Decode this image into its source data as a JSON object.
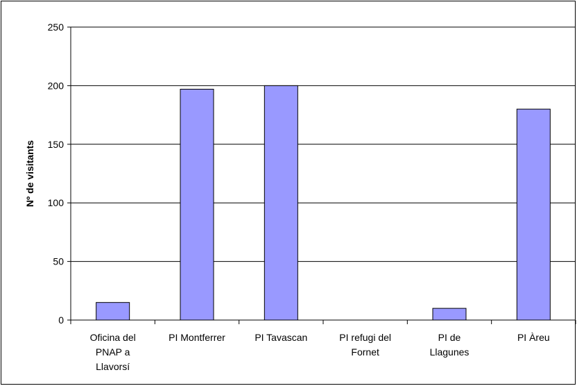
{
  "chart_data": {
    "type": "bar",
    "title": "",
    "xlabel": "",
    "ylabel": "Nº de visitants",
    "ylim": [
      0,
      250
    ],
    "yticks": [
      0,
      50,
      100,
      150,
      200,
      250
    ],
    "grid": true,
    "legend": "none",
    "categories": [
      [
        "Oficina del",
        "PNAP a",
        "Llavorsí"
      ],
      [
        "PI Montferrer"
      ],
      [
        "PI Tavascan"
      ],
      [
        "PI refugi del",
        "Fornet"
      ],
      [
        "PI de",
        "Llagunes"
      ],
      [
        "PI Àreu"
      ]
    ],
    "values": [
      15,
      197,
      200,
      0,
      10,
      180
    ],
    "colors": {
      "bar": "#9999ff",
      "bar_stroke": "#000000",
      "grid": "#000000"
    }
  }
}
